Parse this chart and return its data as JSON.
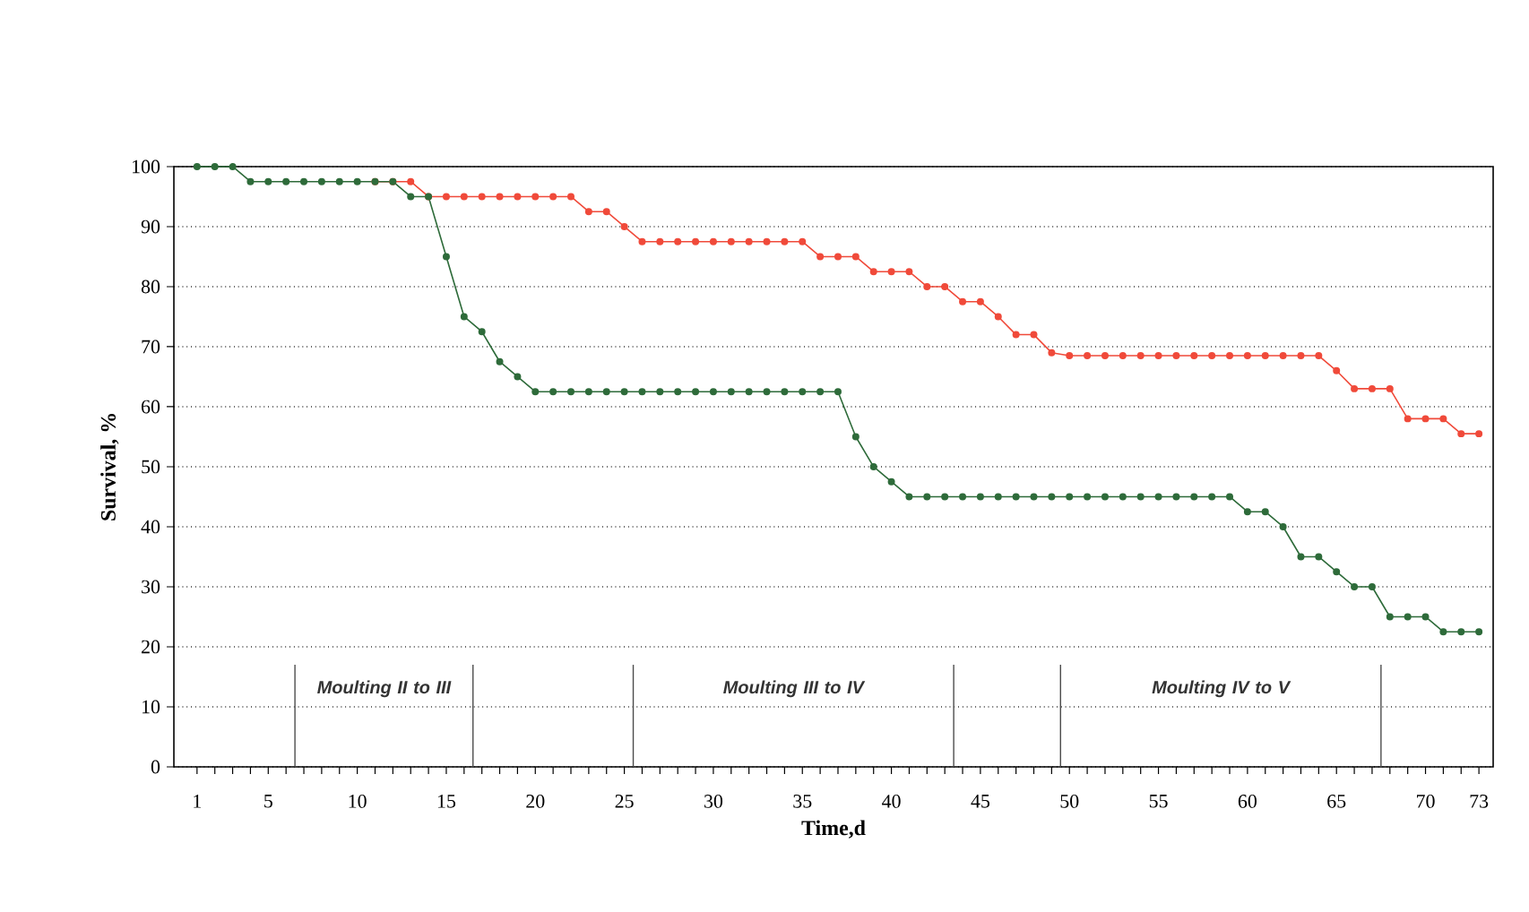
{
  "chart_data": {
    "type": "line",
    "xlabel": "Time,d",
    "ylabel": "Survival, %",
    "x": [
      1,
      2,
      3,
      4,
      5,
      6,
      7,
      8,
      9,
      10,
      11,
      12,
      13,
      14,
      15,
      16,
      17,
      18,
      19,
      20,
      21,
      22,
      23,
      24,
      25,
      26,
      27,
      28,
      29,
      30,
      31,
      32,
      33,
      34,
      35,
      36,
      37,
      38,
      39,
      40,
      41,
      42,
      43,
      44,
      45,
      46,
      47,
      48,
      49,
      50,
      51,
      52,
      53,
      54,
      55,
      56,
      57,
      58,
      59,
      60,
      61,
      62,
      63,
      64,
      65,
      66,
      67,
      68,
      69,
      70,
      71,
      72,
      73
    ],
    "series": [
      {
        "color": "#f04a3a",
        "values": [
          null,
          null,
          null,
          null,
          null,
          null,
          null,
          null,
          null,
          null,
          97.5,
          97.5,
          97.5,
          95,
          95,
          95,
          95,
          95,
          95,
          95,
          95,
          95,
          92.5,
          92.5,
          90,
          87.5,
          87.5,
          87.5,
          87.5,
          87.5,
          87.5,
          87.5,
          87.5,
          87.5,
          87.5,
          85,
          85,
          85,
          82.5,
          82.5,
          82.5,
          80,
          80,
          77.5,
          77.5,
          75,
          72,
          72,
          69,
          68.5,
          68.5,
          68.5,
          68.5,
          68.5,
          68.5,
          68.5,
          68.5,
          68.5,
          68.5,
          68.5,
          68.5,
          68.5,
          68.5,
          68.5,
          66,
          63,
          63,
          63,
          58,
          58,
          58,
          55.5,
          55.5
        ]
      },
      {
        "color": "#2e6b3a",
        "values": [
          100,
          100,
          100,
          97.5,
          97.5,
          97.5,
          97.5,
          97.5,
          97.5,
          97.5,
          97.5,
          97.5,
          95,
          95,
          85,
          75,
          72.5,
          67.5,
          65,
          62.5,
          62.5,
          62.5,
          62.5,
          62.5,
          62.5,
          62.5,
          62.5,
          62.5,
          62.5,
          62.5,
          62.5,
          62.5,
          62.5,
          62.5,
          62.5,
          62.5,
          62.5,
          55,
          50,
          47.5,
          45,
          45,
          45,
          45,
          45,
          45,
          45,
          45,
          45,
          45,
          45,
          45,
          45,
          45,
          45,
          45,
          45,
          45,
          45,
          42.5,
          42.5,
          40,
          35,
          35,
          32.5,
          30,
          30,
          25,
          25,
          25,
          22.5,
          22.5,
          22.5
        ]
      }
    ],
    "xlim": [
      -0.3,
      73.8
    ],
    "ylim": [
      0,
      100
    ],
    "xticks": [
      1,
      {
        "value": 2,
        "label": null
      },
      {
        "value": 3,
        "label": null
      },
      {
        "value": 4,
        "label": null
      },
      5,
      {
        "value": 6,
        "label": null
      },
      {
        "value": 7,
        "label": null
      },
      {
        "value": 8,
        "label": null
      },
      {
        "value": 9,
        "label": null
      },
      10,
      {
        "value": 11,
        "label": null
      },
      {
        "value": 12,
        "label": null
      },
      {
        "value": 13,
        "label": null
      },
      {
        "value": 14,
        "label": null
      },
      15,
      {
        "value": 16,
        "label": null
      },
      {
        "value": 17,
        "label": null
      },
      {
        "value": 18,
        "label": null
      },
      {
        "value": 19,
        "label": null
      },
      20,
      {
        "value": 21,
        "label": null
      },
      {
        "value": 22,
        "label": null
      },
      {
        "value": 23,
        "label": null
      },
      {
        "value": 24,
        "label": null
      },
      25,
      {
        "value": 26,
        "label": null
      },
      {
        "value": 27,
        "label": null
      },
      {
        "value": 28,
        "label": null
      },
      {
        "value": 29,
        "label": null
      },
      30,
      {
        "value": 31,
        "label": null
      },
      {
        "value": 32,
        "label": null
      },
      {
        "value": 33,
        "label": null
      },
      {
        "value": 34,
        "label": null
      },
      35,
      {
        "value": 36,
        "label": null
      },
      {
        "value": 37,
        "label": null
      },
      {
        "value": 38,
        "label": null
      },
      {
        "value": 39,
        "label": null
      },
      40,
      {
        "value": 41,
        "label": null
      },
      {
        "value": 42,
        "label": null
      },
      {
        "value": 43,
        "label": null
      },
      {
        "value": 44,
        "label": null
      },
      45,
      {
        "value": 46,
        "label": null
      },
      {
        "value": 47,
        "label": null
      },
      {
        "value": 48,
        "label": null
      },
      {
        "value": 49,
        "label": null
      },
      50,
      {
        "value": 51,
        "label": null
      },
      {
        "value": 52,
        "label": null
      },
      {
        "value": 53,
        "label": null
      },
      {
        "value": 54,
        "label": null
      },
      55,
      {
        "value": 56,
        "label": null
      },
      {
        "value": 57,
        "label": null
      },
      {
        "value": 58,
        "label": null
      },
      {
        "value": 59,
        "label": null
      },
      60,
      {
        "value": 61,
        "label": null
      },
      {
        "value": 62,
        "label": null
      },
      {
        "value": 63,
        "label": null
      },
      {
        "value": 64,
        "label": null
      },
      65,
      {
        "value": 66,
        "label": null
      },
      {
        "value": 67,
        "label": null
      },
      {
        "value": 68,
        "label": null
      },
      {
        "value": 69,
        "label": null
      },
      70,
      {
        "value": 71,
        "label": null
      },
      {
        "value": 72,
        "label": null
      },
      73
    ],
    "yticks": [
      0,
      10,
      20,
      30,
      40,
      50,
      60,
      70,
      80,
      90,
      100
    ],
    "grid": "y",
    "marker": "circle",
    "line_style": "solid",
    "ref_lines": [
      {
        "axis": "x",
        "value": 6.5
      },
      {
        "axis": "x",
        "value": 16.5
      },
      {
        "axis": "x",
        "value": 25.5
      },
      {
        "axis": "x",
        "value": 43.5
      },
      {
        "axis": "x",
        "value": 49.5
      },
      {
        "axis": "x",
        "value": 67.5
      }
    ],
    "annotations": [
      "Moulting II to III",
      "Moulting III to IV",
      "Moulting IV to V"
    ]
  }
}
